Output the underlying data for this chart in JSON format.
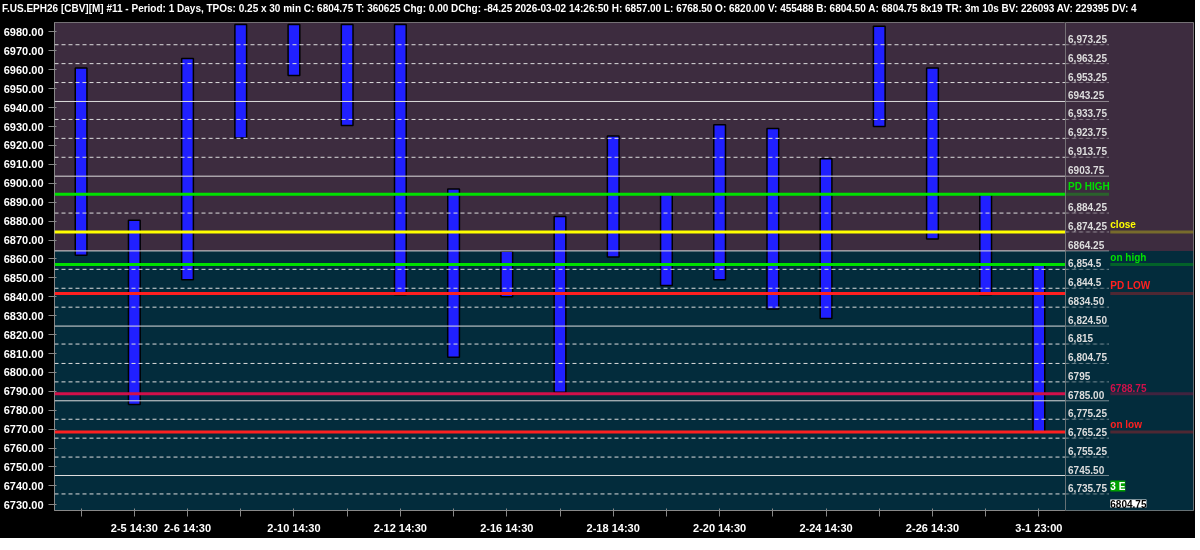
{
  "chart_data": {
    "type": "bar",
    "title": "F.US.EPH26 [CBV][M] #11 - Period: 1 Days, TPOs: 0.25 x 30 min  C: 6804.75 T: 360625 Chg: 0.00 DChg: -84.25 2026-03-02 14:26:50 H: 6857.00 L: 6768.50 O: 6820.00 V: 455488 B: 6804.50 A: 6804.75 8x19 TR: 3m 10s BV: 226093 AV: 229395 DV: 4",
    "categories": [
      null,
      "2-5 14:30",
      "2-6 14:30",
      null,
      "2-10 14:30",
      null,
      "2-12 14:30",
      null,
      "2-16 14:30",
      null,
      "2-18 14:30",
      null,
      "2-20 14:30",
      null,
      "2-24 14:30",
      null,
      "2-26 14:30",
      null,
      "3-1 23:00"
    ],
    "base": [
      6862,
      6783,
      6849,
      6924,
      6957,
      6930.5,
      6841,
      6808,
      6840,
      6789.5,
      6861,
      6846,
      6849,
      6833.5,
      6828.5,
      6930,
      6870.5,
      6841,
      6768.5
    ],
    "values": [
      99,
      97.5,
      117,
      60,
      27,
      53.5,
      143,
      89,
      24,
      93,
      64,
      48,
      82,
      95.5,
      84.5,
      53,
      90.5,
      53,
      88.5
    ],
    "color": "#2020ff",
    "ylim": [
      6727,
      6985
    ],
    "yticks": [
      {
        "value": 6730,
        "label": "6730.00"
      },
      {
        "value": 6740,
        "label": "6740.00"
      },
      {
        "value": 6750,
        "label": "6750.00"
      },
      {
        "value": 6760,
        "label": "6760.00"
      },
      {
        "value": 6770,
        "label": "6770.00"
      },
      {
        "value": 6780,
        "label": "6780.00"
      },
      {
        "value": 6790,
        "label": "6790.00"
      },
      {
        "value": 6800,
        "label": "6800.00"
      },
      {
        "value": 6810,
        "label": "6810.00"
      },
      {
        "value": 6820,
        "label": "6820.00"
      },
      {
        "value": 6830,
        "label": "6830.00"
      },
      {
        "value": 6840,
        "label": "6840.00"
      },
      {
        "value": 6850,
        "label": "6850.00"
      },
      {
        "value": 6860,
        "label": "6860.00"
      },
      {
        "value": 6870,
        "label": "6870.00"
      },
      {
        "value": 6880,
        "label": "6880.00"
      },
      {
        "value": 6890,
        "label": "6890.00"
      },
      {
        "value": 6900,
        "label": "6900.00"
      },
      {
        "value": 6910,
        "label": "6910.00"
      },
      {
        "value": 6920,
        "label": "6920.00"
      },
      {
        "value": 6930,
        "label": "6930.00"
      },
      {
        "value": 6940,
        "label": "6940.00"
      },
      {
        "value": 6950,
        "label": "6950.00"
      },
      {
        "value": 6960,
        "label": "6960.00"
      },
      {
        "value": 6970,
        "label": "6970.00"
      },
      {
        "value": 6980,
        "label": "6980.00"
      }
    ],
    "grid": false,
    "bands": [
      {
        "axis": "y",
        "from": 6864.25,
        "to": 6985,
        "color": "#3d2c3f"
      },
      {
        "axis": "y",
        "from": 6727,
        "to": 6864.25,
        "color": "#032c3c"
      }
    ],
    "ref_lines": [
      {
        "axis": "y",
        "value": 6973.25,
        "label": "6,973.25",
        "line_style": "dashed"
      },
      {
        "axis": "y",
        "value": 6963.25,
        "label": "6,963.25",
        "line_style": "dashed"
      },
      {
        "axis": "y",
        "value": 6953.25,
        "label": "6,953.25",
        "line_style": "dashed"
      },
      {
        "axis": "y",
        "value": 6943.25,
        "label": "6943.25",
        "line_style": "solid"
      },
      {
        "axis": "y",
        "value": 6933.75,
        "label": "6,933.75",
        "line_style": "dashed"
      },
      {
        "axis": "y",
        "value": 6923.75,
        "label": "6,923.75",
        "line_style": "dashed"
      },
      {
        "axis": "y",
        "value": 6913.75,
        "label": "6,913.75",
        "line_style": "dashed"
      },
      {
        "axis": "y",
        "value": 6903.75,
        "label": "6903.75",
        "line_style": "solid"
      },
      {
        "axis": "y",
        "value": 6894.25,
        "label": "PD HIGH",
        "color": "#00e000",
        "line_style": "solid"
      },
      {
        "axis": "y",
        "value": 6884.25,
        "label": "6,884.25",
        "line_style": "dashed"
      },
      {
        "axis": "y",
        "value": 6874.25,
        "label": "6,874.25",
        "line_style": "dashed"
      },
      {
        "axis": "y",
        "value": 6874.25,
        "label": "close",
        "color": "#ffff00",
        "line_style": "solid"
      },
      {
        "axis": "y",
        "value": 6864.25,
        "label": "6864.25",
        "line_style": "solid"
      },
      {
        "axis": "y",
        "value": 6857,
        "label": "on high",
        "color": "#00e000",
        "line_style": "solid"
      },
      {
        "axis": "y",
        "value": 6854.5,
        "label": "6,854.5",
        "line_style": "dashed"
      },
      {
        "axis": "y",
        "value": 6844.5,
        "label": "6,844.5",
        "line_style": "dashed"
      },
      {
        "axis": "y",
        "value": 6841.75,
        "label": "PD LOW",
        "color": "#ff2020",
        "line_style": "solid"
      },
      {
        "axis": "y",
        "value": 6834.5,
        "label": "6834.50",
        "line_style": "dashed"
      },
      {
        "axis": "y",
        "value": 6824.5,
        "label": "6,824.50",
        "line_style": "solid"
      },
      {
        "axis": "y",
        "value": 6815,
        "label": "6,815",
        "line_style": "dashed"
      },
      {
        "axis": "y",
        "value": 6804.75,
        "label": "6,804.75",
        "line_style": "dashed"
      },
      {
        "axis": "y",
        "value": 6795,
        "label": "6795",
        "line_style": "dashed"
      },
      {
        "axis": "y",
        "value": 6788.75,
        "label": "6788.75",
        "color": "#d0104a",
        "line_style": "solid"
      },
      {
        "axis": "y",
        "value": 6785,
        "label": "6785.00",
        "line_style": "solid"
      },
      {
        "axis": "y",
        "value": 6775.25,
        "label": "6,775.25",
        "line_style": "dashed"
      },
      {
        "axis": "y",
        "value": 6768.5,
        "label": "on low",
        "color": "#ff2020",
        "line_style": "solid"
      },
      {
        "axis": "y",
        "value": 6765.25,
        "label": "6,765.25",
        "line_style": "dashed"
      },
      {
        "axis": "y",
        "value": 6755.25,
        "label": "6,755.25",
        "line_style": "dashed"
      },
      {
        "axis": "y",
        "value": 6745.5,
        "label": "6745.50",
        "line_style": "solid"
      },
      {
        "axis": "y",
        "value": 6735.75,
        "label": "6,735.75",
        "line_style": "dashed"
      }
    ],
    "annotations": [
      "6804.75",
      "3 E"
    ]
  }
}
